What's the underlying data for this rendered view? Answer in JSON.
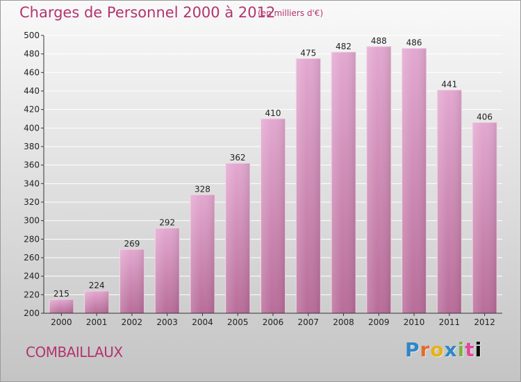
{
  "title": "Charges de Personnel 2000 à 2012",
  "unit_note": "(en milliers d'€)",
  "commune": "COMBAILLAUX",
  "logo_letters": [
    "P",
    "r",
    "o",
    "x",
    "i",
    "t",
    "i"
  ],
  "colors": {
    "title": "#b3336f",
    "bar_top": "#e3a8d0",
    "bar_bottom": "#b86d99",
    "grid": "#ffffff",
    "axis": "#333333"
  },
  "chart_data": {
    "type": "bar",
    "title": "Charges de Personnel 2000 à 2012",
    "subtitle": "(en milliers d'€)",
    "categories": [
      "2000",
      "2001",
      "2002",
      "2003",
      "2004",
      "2005",
      "2006",
      "2007",
      "2008",
      "2009",
      "2010",
      "2011",
      "2012"
    ],
    "values": [
      215,
      224,
      269,
      292,
      328,
      362,
      410,
      475,
      482,
      488,
      486,
      441,
      406
    ],
    "ylim": [
      200,
      500
    ],
    "yticks": [
      200,
      220,
      240,
      260,
      280,
      300,
      320,
      340,
      360,
      380,
      400,
      420,
      440,
      460,
      480,
      500
    ],
    "grid": true,
    "data_labels": true
  }
}
